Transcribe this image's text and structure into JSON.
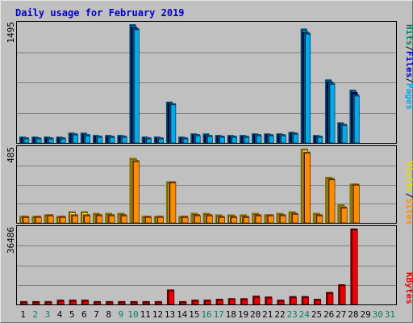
{
  "colors": {
    "background": "#C0C0C0",
    "frame_light": "#E8E8E8",
    "frame_dark": "#707070",
    "title": "#0000CC",
    "grid": "#808080",
    "hits_front": "#00AAEE",
    "hits_side": "#004E6E",
    "files_front": "#0000AA",
    "files_side": "#000055",
    "pages_front": "#00AAEE",
    "pages_side": "#005577",
    "visits_front": "#FFF040",
    "visits_side": "#8A7A00",
    "sites_front": "#FF8C00",
    "sites_side": "#7A3F00",
    "kbytes_front": "#EE0000",
    "kbytes_side": "#660000",
    "legend_hits": "#00805F",
    "legend_files": "#0000CC",
    "legend_pages": "#00AAEE",
    "legend_visits": "#E8D800",
    "legend_sites": "#FF8C00",
    "legend_kbytes": "#EE0000",
    "weekday_label": "#000000",
    "weekend_label": "#00805F"
  },
  "chart_data": {
    "type": "bar",
    "title": "Daily usage for February 2019",
    "categories": [
      "1",
      "2",
      "3",
      "4",
      "5",
      "6",
      "7",
      "8",
      "9",
      "10",
      "11",
      "12",
      "13",
      "14",
      "15",
      "16",
      "17",
      "18",
      "19",
      "20",
      "21",
      "22",
      "23",
      "24",
      "25",
      "26",
      "27",
      "28",
      "29",
      "30",
      "31"
    ],
    "weekend_days": [
      2,
      3,
      9,
      10,
      16,
      17,
      23,
      24,
      30,
      31
    ],
    "panels": [
      {
        "name": "hits-files-pages",
        "max_label": "1495",
        "ylim": [
          0,
          1495
        ],
        "legend": [
          "Pages",
          "/",
          "Files",
          "/",
          "Hits"
        ],
        "series": [
          {
            "name": "Hits",
            "values": [
              80,
              80,
              80,
              80,
              130,
              130,
              100,
              100,
              100,
              1495,
              80,
              80,
              520,
              80,
              120,
              120,
              100,
              100,
              100,
              120,
              120,
              120,
              140,
              1440,
              100,
              800,
              260,
              670,
              null,
              null,
              null
            ]
          },
          {
            "name": "Files",
            "values": [
              70,
              70,
              70,
              70,
              120,
              110,
              90,
              90,
              90,
              1460,
              70,
              70,
              500,
              70,
              110,
              100,
              90,
              90,
              90,
              110,
              110,
              110,
              130,
              1400,
              90,
              770,
              240,
              640,
              null,
              null,
              null
            ]
          },
          {
            "name": "Pages",
            "values": [
              70,
              70,
              70,
              70,
              120,
              110,
              90,
              90,
              90,
              1445,
              70,
              70,
              500,
              70,
              110,
              100,
              90,
              90,
              90,
              110,
              110,
              110,
              130,
              1390,
              90,
              760,
              240,
              610,
              null,
              null,
              null
            ]
          }
        ]
      },
      {
        "name": "visits-sites",
        "max_label": "485",
        "ylim": [
          0,
          485
        ],
        "legend": [
          "Sites",
          "/",
          "Visits"
        ],
        "series": [
          {
            "name": "Visits",
            "values": [
              46,
              46,
              56,
              46,
              76,
              76,
              66,
              66,
              66,
              425,
              46,
              46,
              271,
              46,
              66,
              66,
              56,
              56,
              56,
              66,
              56,
              66,
              76,
              485,
              66,
              301,
              121,
              256,
              null,
              null,
              null
            ]
          },
          {
            "name": "Sites",
            "values": [
              46,
              46,
              56,
              46,
              56,
              56,
              56,
              56,
              56,
              410,
              46,
              46,
              271,
              46,
              56,
              56,
              46,
              46,
              46,
              56,
              56,
              56,
              66,
              465,
              56,
              291,
              106,
              256,
              null,
              null,
              null
            ]
          }
        ]
      },
      {
        "name": "kbytes",
        "max_label": "36486",
        "ylim": [
          0,
          36486
        ],
        "legend": [
          "KBytes"
        ],
        "series": [
          {
            "name": "KBytes",
            "values": [
              1600,
              1600,
              1600,
              2300,
              2300,
              2300,
              1600,
              1600,
              1600,
              1600,
              1600,
              1600,
              7200,
              1600,
              2300,
              2300,
              2700,
              3000,
              3000,
              4200,
              3800,
              2300,
              4000,
              4000,
              2700,
              6000,
              9700,
              36486,
              null,
              null,
              null
            ]
          }
        ]
      }
    ]
  }
}
